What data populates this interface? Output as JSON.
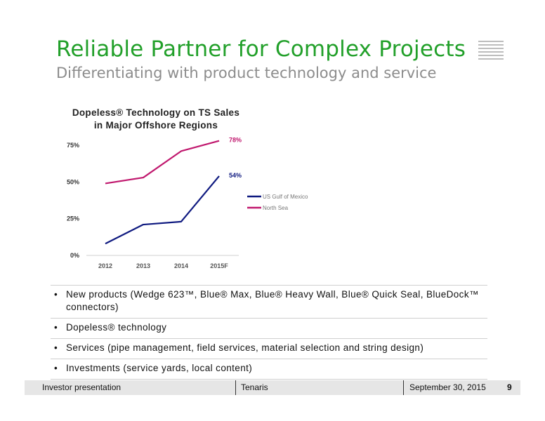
{
  "slide": {
    "title": "Reliable Partner for Complex Projects",
    "subtitle": "Differentiating with product technology and service",
    "page_number": "9"
  },
  "chart_data": {
    "type": "line",
    "title_line1": "Dopeless® Technology on TS Sales",
    "title_line2": "in Major Offshore Regions",
    "categories": [
      "2012",
      "2013",
      "2014",
      "2015F"
    ],
    "y_ticks": [
      "0%",
      "25%",
      "50%",
      "75%"
    ],
    "ylim": [
      0,
      80
    ],
    "series": [
      {
        "name": "US Gulf of Mexico",
        "color": "#0f1a80",
        "values": [
          8,
          21,
          23,
          54
        ],
        "end_label": "54%"
      },
      {
        "name": "North Sea",
        "color": "#c0186e",
        "values": [
          49,
          53,
          71,
          78
        ],
        "end_label": "78%"
      }
    ],
    "legend_position": "right"
  },
  "bullets": [
    "New products (Wedge 623™, Blue® Max, Blue® Heavy Wall, Blue® Quick Seal, BlueDock™ connectors)",
    "Dopeless® technology",
    "Services (pipe management, field services, material selection and string design)",
    "Investments (service yards, local content)"
  ],
  "footer": {
    "left": "Investor presentation",
    "center": "Tenaris",
    "right": "September 30, 2015"
  }
}
